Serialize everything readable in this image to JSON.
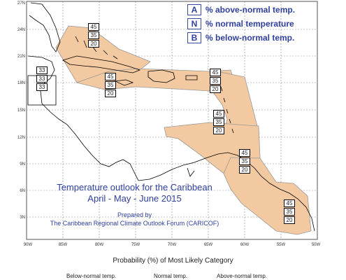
{
  "map": {
    "lat_labels": [
      "27N",
      "24N",
      "21N",
      "18N",
      "15N",
      "12N",
      "9N",
      "6N",
      "3N"
    ],
    "lon_labels": [
      "90W",
      "85W",
      "80W",
      "75W",
      "70W",
      "65W",
      "60W",
      "55W",
      "50W"
    ],
    "region_fill": "#f2c9a0",
    "region_stroke": "#888888",
    "coast_color": "#000000",
    "grid_color": "#888888"
  },
  "legend": {
    "items": [
      {
        "key": "A",
        "label": "% above-normal temp."
      },
      {
        "key": "N",
        "label": "% normal temperature"
      },
      {
        "key": "B",
        "label": "% below-normal temp."
      }
    ]
  },
  "title": {
    "line1": "Temperature outlook for the Caribbean",
    "line2": "April - May - June 2015",
    "prepared1": "Prepared by",
    "prepared2": "The Caribbean Regional Climate Outlook Forum (CARICOF)"
  },
  "boxes": [
    {
      "id": "bahamas",
      "values": [
        "45",
        "35",
        "20"
      ]
    },
    {
      "id": "belize",
      "values": [
        "33",
        "33",
        "33"
      ]
    },
    {
      "id": "greater-antilles",
      "values": [
        "45",
        "35",
        "20"
      ]
    },
    {
      "id": "leeward",
      "values": [
        "45",
        "35",
        "20"
      ]
    },
    {
      "id": "windward",
      "values": [
        "45",
        "35",
        "20"
      ]
    },
    {
      "id": "trinidad",
      "values": [
        "45",
        "35",
        "20"
      ]
    },
    {
      "id": "guianas",
      "values": [
        "45",
        "35",
        "20"
      ]
    }
  ],
  "footer": {
    "title": "Probability (%) of Most Likely Category",
    "below": "Below-normal temp.",
    "normal": "Normal temp.",
    "above": "Above-normal temp."
  }
}
